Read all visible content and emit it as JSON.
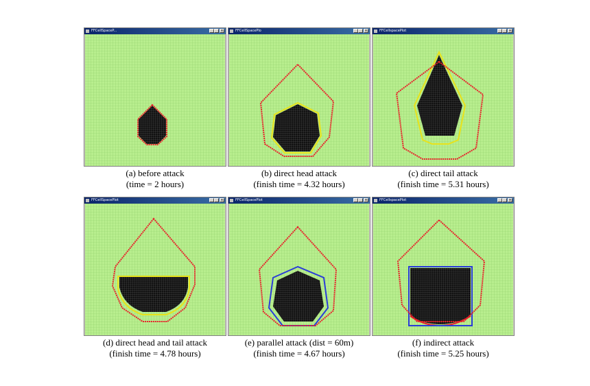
{
  "colors": {
    "canvas_bg": "#b8ee8e",
    "grid_line": "#8fcf6a",
    "fire_region": "#111111",
    "fire_grid": "#6b6b6b",
    "red_front": "#e8202a",
    "yellow_front": "#e8e21a",
    "blue_front": "#2a3cd8",
    "title_bar": "#0a246a"
  },
  "panels": [
    {
      "id": "a",
      "window_title": "FFCellSpaceP...",
      "caption_line1": "(a) before attack",
      "caption_line2": "(time = 2 hours)"
    },
    {
      "id": "b",
      "window_title": "FFCellSpacePlo",
      "caption_line1": "(b) direct head attack",
      "caption_line2": "(finish time = 4.32 hours)"
    },
    {
      "id": "c",
      "window_title": "FFCellspacePlot",
      "caption_line1": "(c) direct tail attack",
      "caption_line2": "(finish time = 5.31 hours)"
    },
    {
      "id": "d",
      "window_title": "FFCellSpacePlot",
      "caption_line1": "(d) direct head and tail attack",
      "caption_line2": "(finish time = 4.78 hours)"
    },
    {
      "id": "e",
      "window_title": "FFCellSpacePlot",
      "caption_line1": "(e) parallel attack (dist = 60m)",
      "caption_line2": "(finish time = 4.67 hours)"
    },
    {
      "id": "f",
      "window_title": "FFCellspacePlot",
      "caption_line1": "(f) indirect attack",
      "caption_line2": "(finish time = 5.25 hours)"
    }
  ]
}
